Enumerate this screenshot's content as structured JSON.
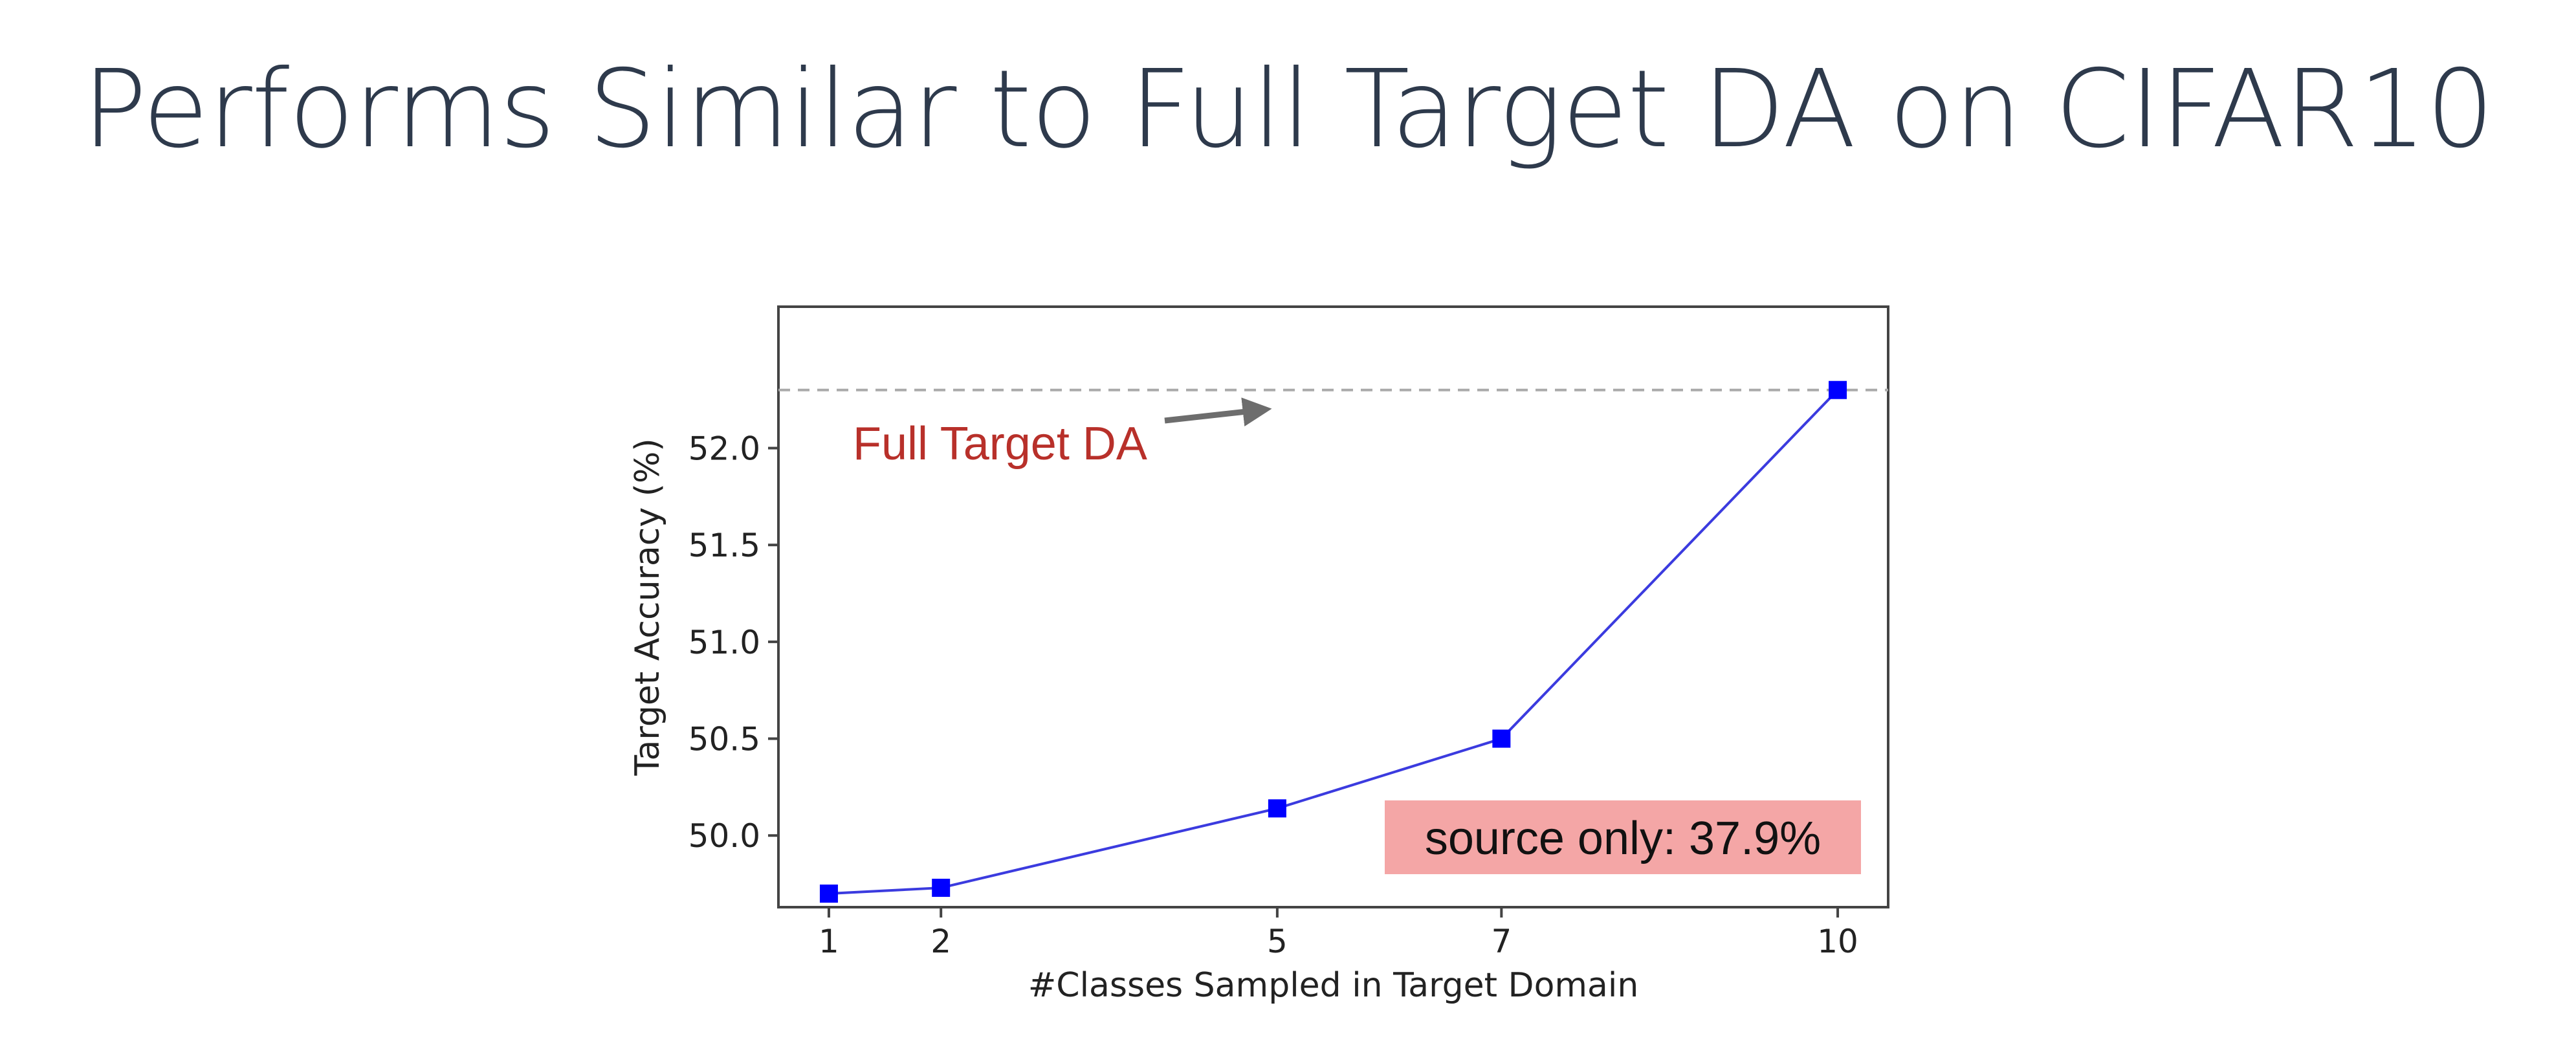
{
  "slide_title": "Performs Similar to Full Target DA on CIFAR10",
  "chart_data": {
    "type": "line",
    "x": [
      1,
      2,
      5,
      7,
      10
    ],
    "xticks": [
      1,
      2,
      5,
      7,
      10
    ],
    "xlim": [
      0.55,
      10.45
    ],
    "series": [
      {
        "values": [
          49.7,
          49.73,
          50.14,
          50.5,
          52.3
        ],
        "color": "#3b3bdf",
        "marker_color": "#0000ff"
      }
    ],
    "ylim": [
      49.63,
      52.73
    ],
    "yticks": [
      50.0,
      50.5,
      51.0,
      51.5,
      52.0
    ],
    "ytick_labels": [
      "50.0",
      "50.5",
      "51.0",
      "51.5",
      "52.0"
    ],
    "xlabel": "#Classes Sampled in Target Domain",
    "ylabel": "Target Accuracy (%)",
    "reference_line": {
      "y": 52.3,
      "style": "dashed",
      "color": "#aaaaaa"
    },
    "annotation": {
      "text": "Full Target DA",
      "color": "#b8302a",
      "arrow_color": "#6d6d6d",
      "arrow_target": [
        4.9,
        52.2
      ]
    },
    "text_box": {
      "text": "source only: 37.9%",
      "background": "#f4a6a6"
    },
    "grid": false,
    "legend": false
  }
}
